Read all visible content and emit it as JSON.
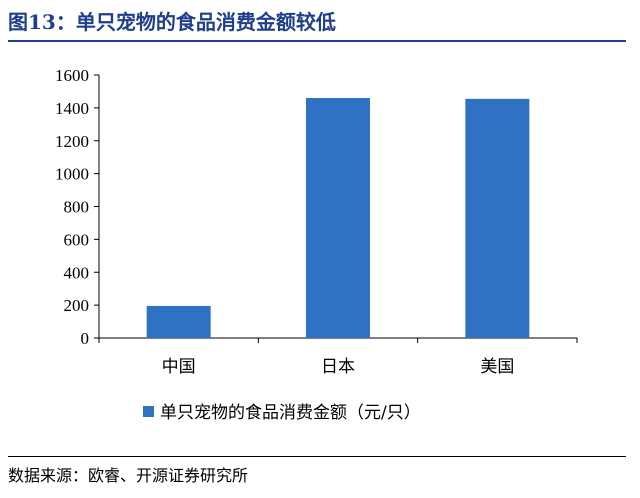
{
  "figure": {
    "title": "图13：单只宠物的食品消费金额较低",
    "source": "数据来源：欧睿、开源证券研究所"
  },
  "colors": {
    "bar": "#2f72c4",
    "title": "#1f3e8c"
  },
  "chart_data": {
    "type": "bar",
    "categories": [
      "中国",
      "日本",
      "美国"
    ],
    "series": [
      {
        "name": "单只宠物的食品消费金额（元/只）",
        "values": [
          195,
          1460,
          1455
        ]
      }
    ],
    "ylim": [
      0,
      1600
    ],
    "yticks": [
      0,
      200,
      400,
      600,
      800,
      1000,
      1200,
      1400,
      1600
    ],
    "grid": false,
    "legend": "bottom-center"
  }
}
